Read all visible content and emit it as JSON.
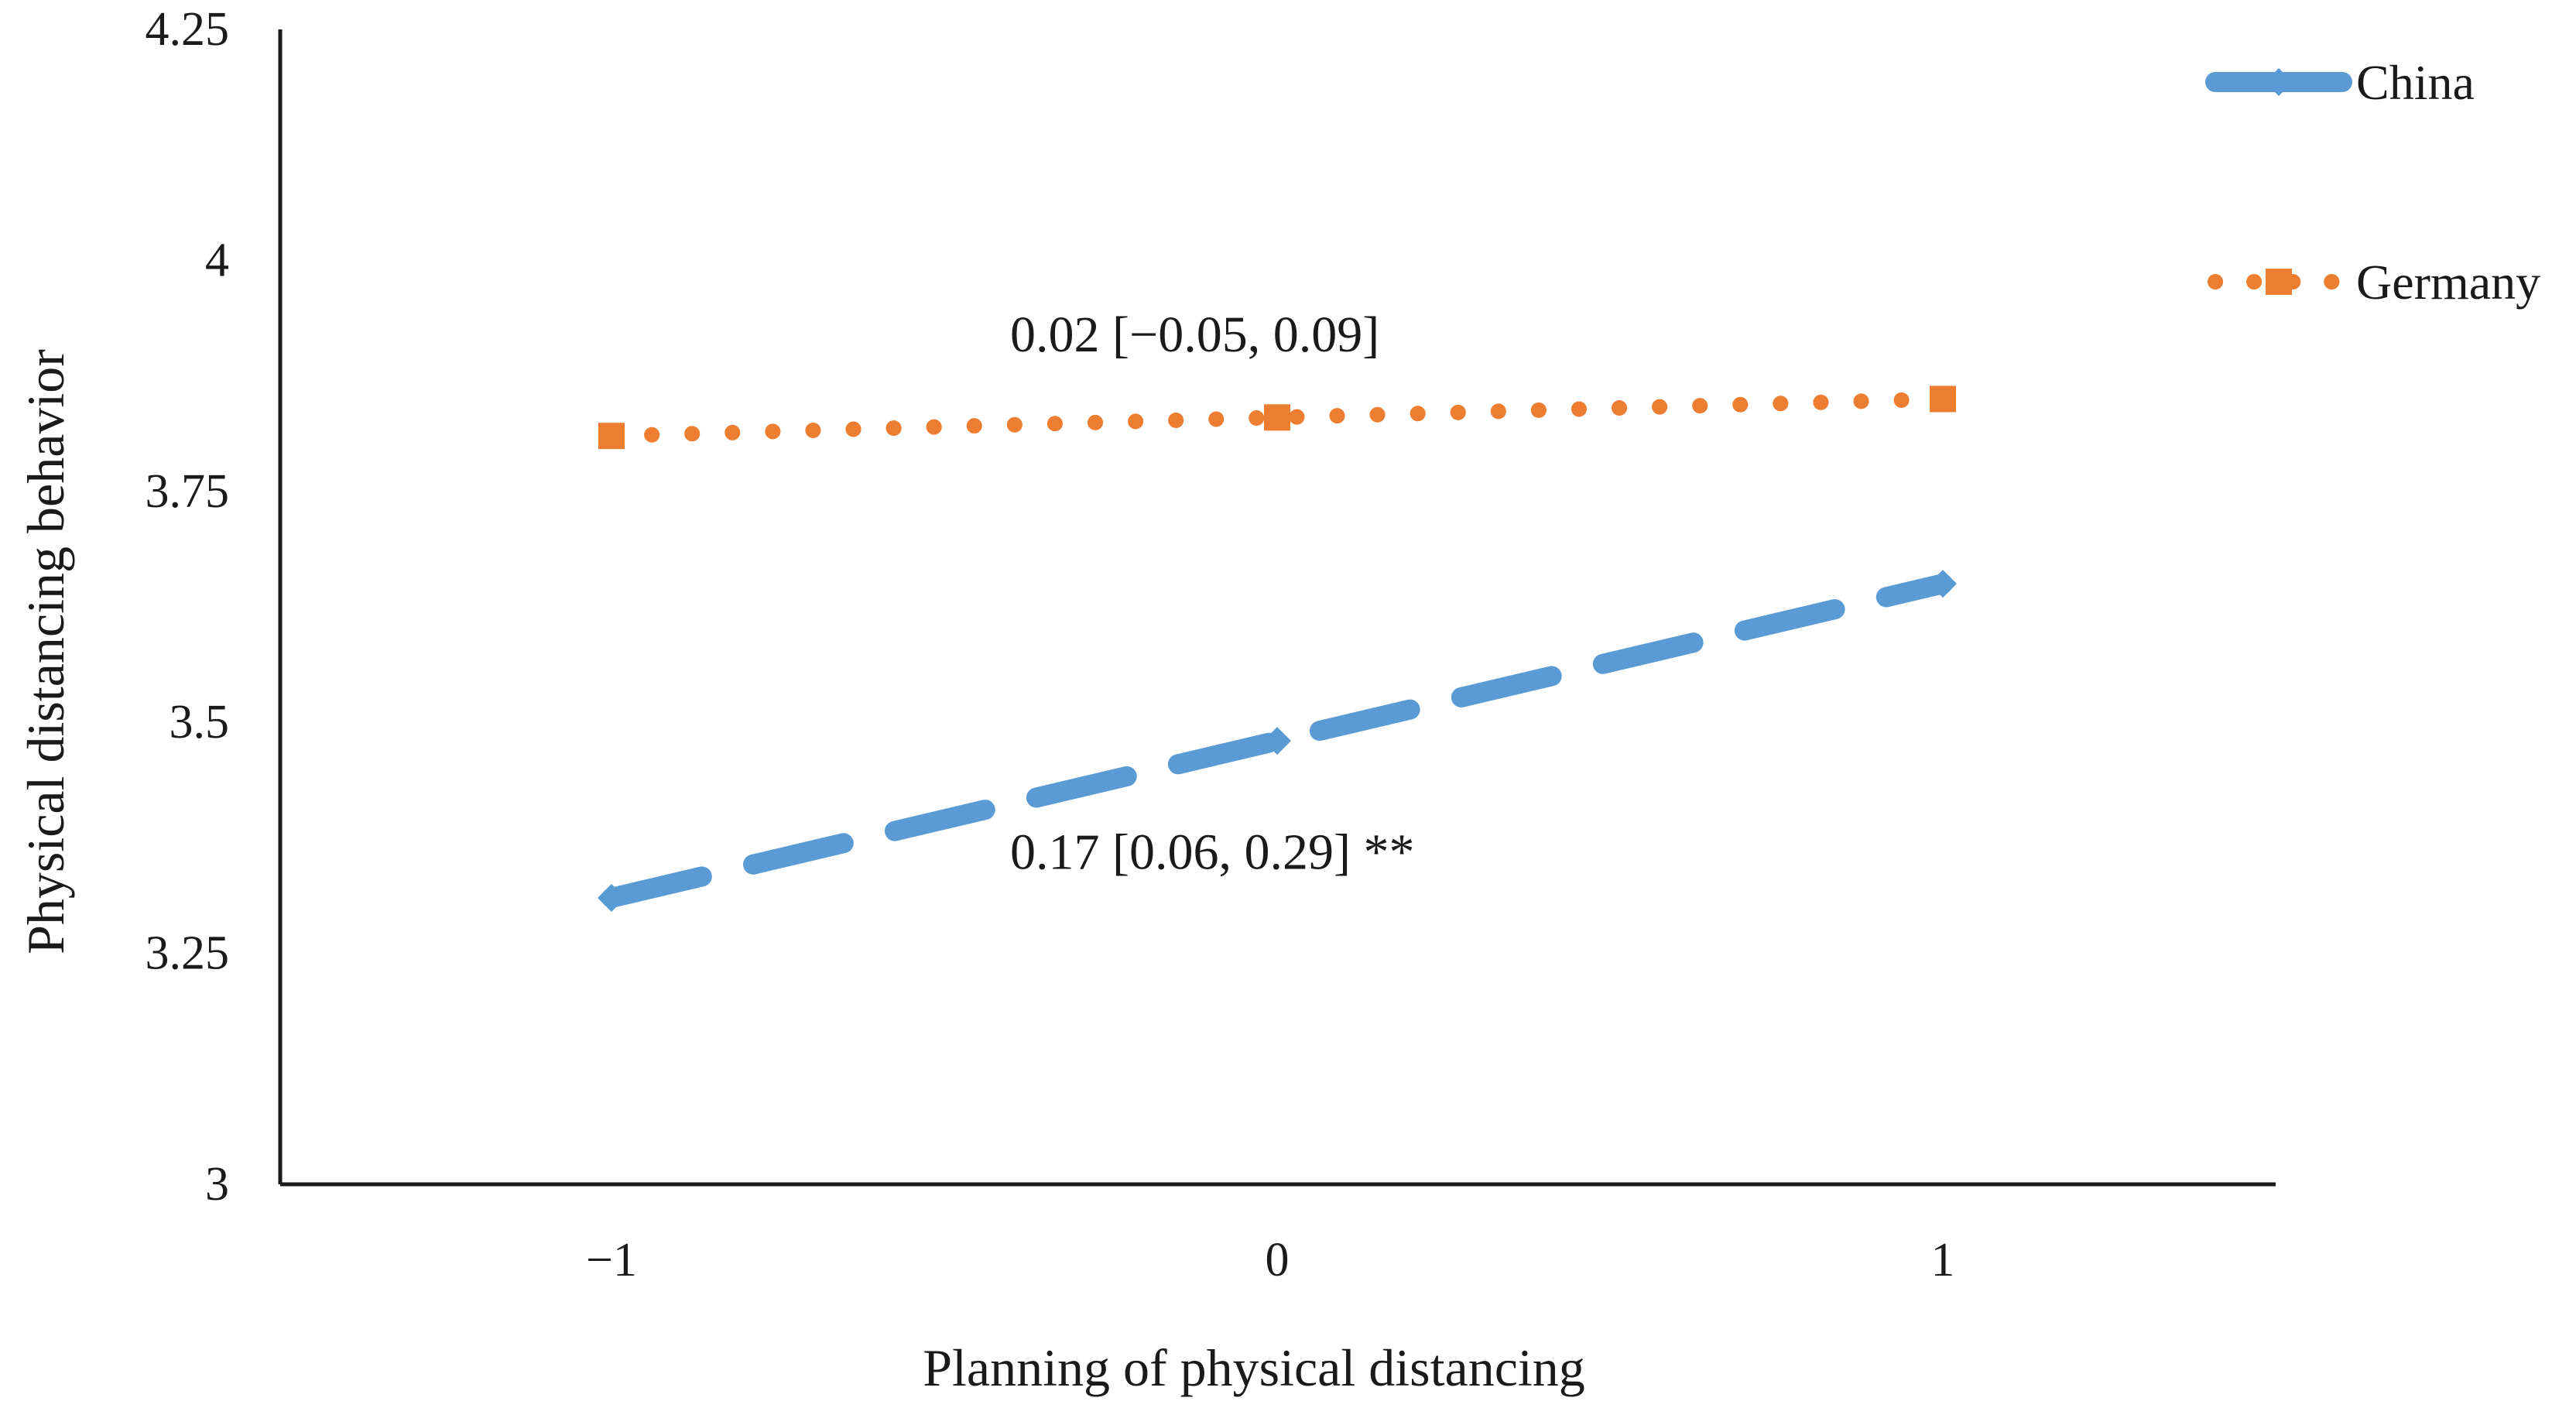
{
  "chart_data": {
    "type": "line",
    "title": "",
    "xlabel": "Planning of physical distancing",
    "ylabel": "Physical distancing behavior",
    "x": [
      -1,
      0,
      1
    ],
    "x_tick_labels": [
      "−1",
      "0",
      "1"
    ],
    "ylim": [
      3,
      4.25
    ],
    "y_ticks": [
      3,
      3.25,
      3.5,
      3.75,
      4,
      4.25
    ],
    "y_tick_labels": [
      "3",
      "3.25",
      "3.5",
      "3.75",
      "4",
      "4.25"
    ],
    "grid": false,
    "legend_position": "top-right",
    "series": [
      {
        "name": "China",
        "values": [
          3.31,
          3.48,
          3.65
        ],
        "color": "#5B9BD5",
        "line_style": "dashed",
        "marker": "diamond"
      },
      {
        "name": "Germany",
        "values": [
          3.81,
          3.83,
          3.85
        ],
        "color": "#ED7D31",
        "line_style": "dotted",
        "marker": "square"
      }
    ],
    "annotations": [
      {
        "series": "Germany",
        "text": "0.02 [−0.05, 0.09]",
        "at_x": 0,
        "at_y": 3.92
      },
      {
        "series": "China",
        "text": "0.17 [0.06, 0.29] **",
        "at_x": 0,
        "at_y": 3.36
      }
    ]
  }
}
